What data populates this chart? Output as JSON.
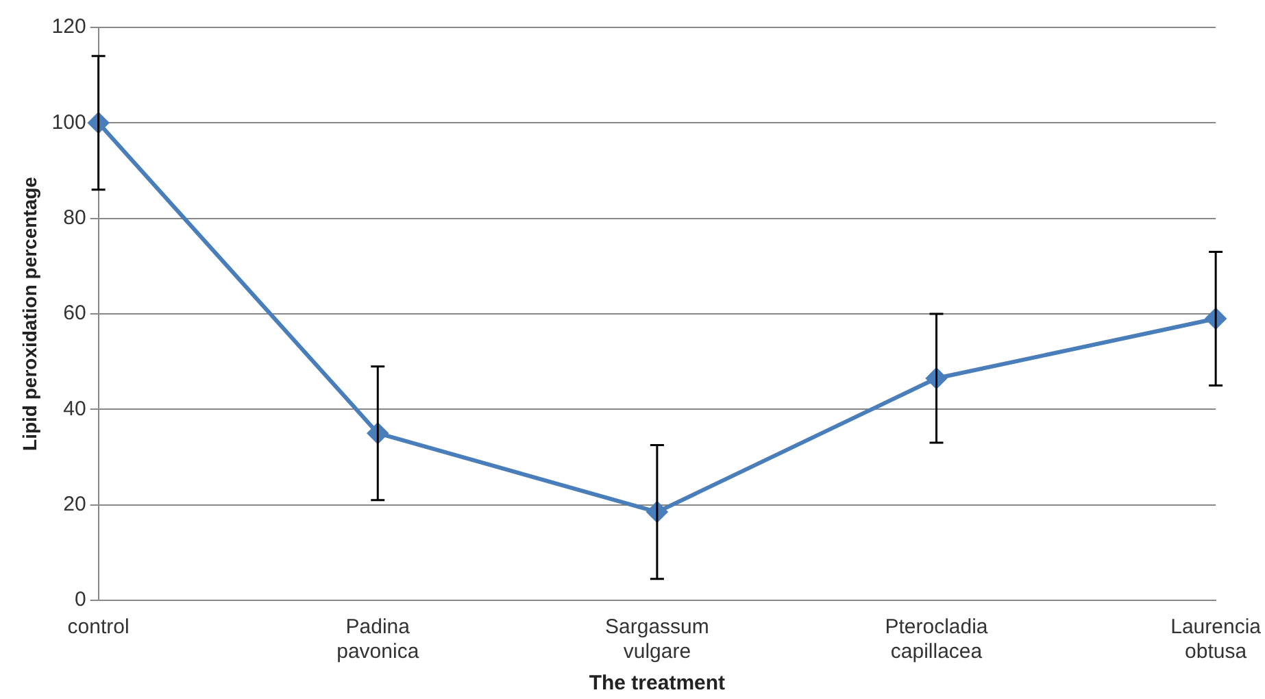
{
  "chart_data": {
    "type": "line",
    "xlabel": "The treatment",
    "ylabel": "Lipid peroxidation percentage",
    "categories": [
      "control",
      "Padina pavonica",
      "Sargassum vulgare",
      "Pterocladia capillacea",
      "Laurencia obtusa"
    ],
    "series": [
      {
        "color": "#4a7ebb",
        "values": [
          100,
          35,
          18.5,
          46.5,
          59
        ],
        "errors": [
          14,
          14,
          14,
          13.5,
          14
        ]
      }
    ],
    "ylim": [
      0,
      120
    ],
    "yticks": [
      0,
      20,
      40,
      60,
      80,
      100,
      120
    ],
    "grid": "y",
    "legend": false,
    "marker": "diamond",
    "line_style": "solid"
  }
}
